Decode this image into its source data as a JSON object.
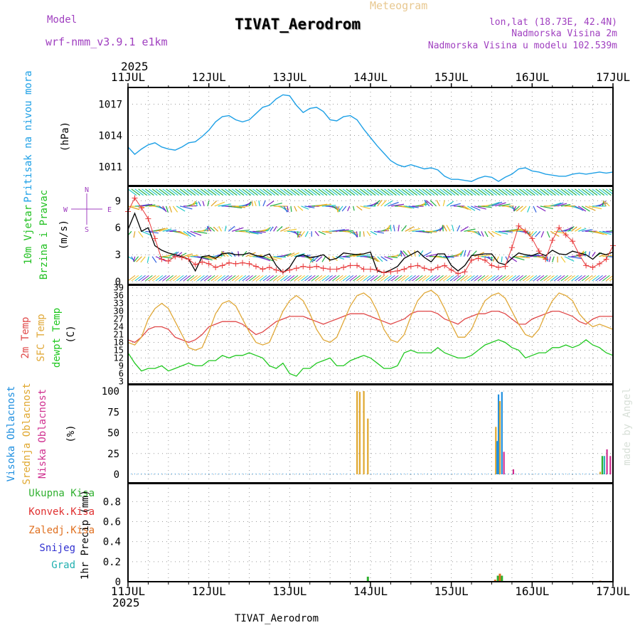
{
  "header": {
    "title": "TIVAT_Aerodrom",
    "meteogram_label": "Meteogram",
    "model_label": "Model",
    "model_name": "wrf-nmm_v3.9.1 e1km",
    "lonlat": "lon,lat (18.73E, 42.4N)",
    "elevation": "Nadmorska Visina 2m",
    "model_elevation": "Nadmorska Visina u modelu 102.539m",
    "year_top": "2025",
    "year_bottom": "2025",
    "footer_title": "TIVAT_Aerodrom",
    "watermark": "made by Angel"
  },
  "colors": {
    "pressure": "#1ea0e6",
    "wind_speed": "#000000",
    "gust": "#e8383a",
    "t2m": "#e04848",
    "sfc": "#e0a838",
    "dewpt": "#20c820",
    "high_cloud": "#2090e0",
    "mid_cloud": "#e0a830",
    "low_cloud": "#d03090",
    "total_rain": "#30b030",
    "conv_rain": "#e03030",
    "freezing_rain": "#e07020",
    "snow": "#3030d0",
    "hail": "#20b0b0",
    "model_text": "#a040c0",
    "meteogram_text": "#e8c890",
    "info_text": "#a040c0",
    "watermark": "#d8e0d8"
  },
  "chart_data": [
    {
      "type": "line",
      "panel": "pressure",
      "ylabel_main": "Pritisak na nivou mora",
      "unit": "(hPa)",
      "y_ticks": [
        "1017",
        "1014",
        "1011"
      ],
      "ylim": [
        1009.2,
        1018.6
      ],
      "x": [
        0,
        2,
        4,
        6,
        8,
        10,
        12,
        14,
        16,
        18,
        20,
        22,
        24,
        26,
        28,
        30,
        32,
        34,
        36,
        38,
        40,
        42,
        44,
        46,
        48,
        50,
        52,
        54,
        56,
        58,
        60,
        62,
        64,
        66,
        68,
        70,
        72,
        74,
        76,
        78,
        80,
        82,
        84,
        86,
        88,
        90,
        92,
        94,
        96,
        98,
        100,
        102,
        104,
        106,
        108,
        110,
        112,
        114,
        116,
        118,
        120,
        122,
        124,
        126,
        128,
        130,
        132,
        134,
        136,
        138,
        140,
        142,
        144
      ],
      "series": [
        {
          "key": "pressure",
          "values": [
            1012.9,
            1012.2,
            1012.7,
            1013.1,
            1013.3,
            1012.9,
            1012.7,
            1012.6,
            1012.9,
            1013.3,
            1013.4,
            1013.9,
            1014.5,
            1015.3,
            1015.8,
            1015.9,
            1015.5,
            1015.3,
            1015.5,
            1016.1,
            1016.7,
            1016.9,
            1017.5,
            1017.9,
            1017.8,
            1016.9,
            1016.2,
            1016.6,
            1016.7,
            1016.3,
            1015.5,
            1015.4,
            1015.8,
            1015.9,
            1015.5,
            1014.6,
            1013.8,
            1013.0,
            1012.3,
            1011.6,
            1011.2,
            1011.0,
            1011.2,
            1011.0,
            1010.8,
            1010.9,
            1010.7,
            1010.1,
            1009.8,
            1009.8,
            1009.7,
            1009.6,
            1009.9,
            1010.1,
            1010.0,
            1009.6,
            1010.0,
            1010.3,
            1010.8,
            1010.9,
            1010.6,
            1010.5,
            1010.3,
            1010.2,
            1010.1,
            1010.1,
            1010.3,
            1010.4,
            1010.3,
            1010.4,
            1010.5,
            1010.4,
            1010.5
          ]
        }
      ]
    },
    {
      "type": "line",
      "panel": "wind",
      "ylabel_main": "10m Vjetar",
      "ylabel_sub": "Brzina i Pravac",
      "unit": "(m/s)",
      "compass": {
        "n": "N",
        "w": "W",
        "e": "E",
        "s": "S"
      },
      "y_ticks": [
        "9",
        "6",
        "3",
        "0"
      ],
      "ylim": [
        -0.3,
        10.6
      ],
      "x": [
        0,
        2,
        4,
        6,
        8,
        10,
        12,
        14,
        16,
        18,
        20,
        22,
        24,
        26,
        28,
        30,
        32,
        34,
        36,
        38,
        40,
        42,
        44,
        46,
        48,
        50,
        52,
        54,
        56,
        58,
        60,
        62,
        64,
        66,
        68,
        70,
        72,
        74,
        76,
        78,
        80,
        82,
        84,
        86,
        88,
        90,
        92,
        94,
        96,
        98,
        100,
        102,
        104,
        106,
        108,
        110,
        112,
        114,
        116,
        118,
        120,
        122,
        124,
        126,
        128,
        130,
        132,
        134,
        136,
        138,
        140,
        142,
        144
      ],
      "series": [
        {
          "key": "wind_speed",
          "values": [
            5.8,
            7.6,
            5.6,
            6.0,
            4.0,
            3.5,
            3.2,
            3.0,
            2.8,
            2.5,
            1.2,
            2.8,
            2.9,
            2.6,
            3.1,
            3.2,
            3.0,
            3.0,
            3.2,
            2.9,
            2.8,
            3.1,
            1.8,
            1.0,
            1.6,
            2.8,
            3.0,
            2.7,
            2.8,
            3.0,
            2.4,
            2.6,
            3.2,
            3.1,
            3.0,
            3.1,
            3.3,
            1.2,
            1.0,
            1.3,
            1.7,
            2.6,
            3.0,
            3.4,
            2.7,
            2.2,
            3.1,
            3.1,
            1.8,
            1.2,
            1.8,
            2.9,
            3.0,
            3.1,
            3.1,
            2.1,
            1.9,
            2.6,
            3.2,
            3.0,
            2.9,
            3.2,
            2.9,
            3.5,
            3.1,
            3.0,
            3.4,
            3.2,
            3.0,
            2.5,
            3.2,
            3.0,
            3.3
          ]
        },
        {
          "key": "gust",
          "values": [
            7.8,
            9.3,
            8.2,
            7.0,
            4.8,
            2.5,
            2.3,
            2.8,
            2.7,
            2.5,
            1.9,
            2.2,
            2.0,
            1.6,
            1.8,
            2.1,
            2.0,
            2.1,
            2.0,
            1.7,
            1.4,
            1.6,
            1.3,
            1.1,
            1.3,
            1.5,
            1.7,
            1.6,
            1.7,
            1.5,
            1.4,
            1.4,
            1.6,
            1.8,
            1.8,
            1.4,
            1.4,
            1.3,
            1.0,
            1.1,
            1.2,
            1.4,
            1.7,
            1.8,
            1.5,
            1.3,
            1.6,
            1.8,
            1.3,
            0.9,
            1.1,
            2.4,
            2.6,
            2.4,
            1.8,
            1.6,
            1.7,
            3.8,
            6.2,
            5.6,
            4.8,
            3.4,
            2.5,
            4.6,
            6.0,
            5.2,
            4.5,
            3.0,
            1.8,
            1.6,
            2.0,
            2.5,
            4.0
          ]
        }
      ],
      "arrow_rows": [
        2.8,
        5.6,
        8.4
      ]
    },
    {
      "type": "line",
      "panel": "temperature",
      "ylabel_t2m": "2m Temp",
      "ylabel_sfc": "SFC Temp",
      "ylabel_dew": "dewpt Temp",
      "unit": "(C)",
      "y_ticks": [
        "39",
        "36",
        "33",
        "30",
        "27",
        "24",
        "21",
        "18",
        "15",
        "12",
        "9",
        "6",
        "3"
      ],
      "ylim": [
        2,
        40
      ],
      "x": [
        0,
        2,
        4,
        6,
        8,
        10,
        12,
        14,
        16,
        18,
        20,
        22,
        24,
        26,
        28,
        30,
        32,
        34,
        36,
        38,
        40,
        42,
        44,
        46,
        48,
        50,
        52,
        54,
        56,
        58,
        60,
        62,
        64,
        66,
        68,
        70,
        72,
        74,
        76,
        78,
        80,
        82,
        84,
        86,
        88,
        90,
        92,
        94,
        96,
        98,
        100,
        102,
        104,
        106,
        108,
        110,
        112,
        114,
        116,
        118,
        120,
        122,
        124,
        126,
        128,
        130,
        132,
        134,
        136,
        138,
        140,
        142,
        144
      ],
      "series": [
        {
          "key": "t2m",
          "values": [
            19,
            18,
            20,
            23,
            24,
            24,
            23,
            20,
            19,
            18,
            19,
            21,
            24,
            25,
            26,
            26,
            26,
            25,
            23,
            21,
            22,
            24,
            26,
            27,
            28,
            28,
            28,
            27,
            26,
            25,
            26,
            27,
            28,
            29,
            29,
            29,
            28,
            27,
            26,
            25,
            26,
            27,
            29,
            30,
            30,
            30,
            29,
            27,
            26,
            25,
            27,
            28,
            29,
            29,
            30,
            30,
            29,
            27,
            25,
            25,
            27,
            28,
            29,
            30,
            30,
            29,
            28,
            26,
            25,
            27,
            28,
            28,
            28
          ]
        },
        {
          "key": "sfc",
          "values": [
            18,
            17,
            20,
            27,
            31,
            33,
            31,
            26,
            21,
            16,
            15,
            16,
            22,
            29,
            33,
            34,
            32,
            27,
            22,
            18,
            17,
            18,
            24,
            30,
            34,
            36,
            34,
            29,
            23,
            19,
            18,
            20,
            26,
            32,
            36,
            37,
            35,
            30,
            23,
            19,
            18,
            21,
            28,
            34,
            37,
            38,
            36,
            31,
            25,
            20,
            20,
            23,
            29,
            34,
            36,
            37,
            35,
            30,
            25,
            21,
            20,
            23,
            29,
            34,
            37,
            36,
            34,
            29,
            26,
            24,
            25,
            24,
            23
          ]
        },
        {
          "key": "dewpt",
          "values": [
            14,
            10,
            7,
            8,
            8,
            9,
            7,
            8,
            9,
            10,
            9,
            9,
            11,
            11,
            13,
            12,
            13,
            13,
            14,
            13,
            12,
            9,
            8,
            10,
            6,
            5,
            8,
            8,
            10,
            11,
            12,
            9,
            9,
            11,
            12,
            13,
            12,
            10,
            8,
            8,
            9,
            14,
            15,
            14,
            14,
            14,
            16,
            14,
            13,
            12,
            12,
            13,
            15,
            17,
            18,
            19,
            18,
            16,
            15,
            12,
            13,
            14,
            14,
            16,
            16,
            17,
            16,
            17,
            19,
            17,
            16,
            14,
            13
          ]
        }
      ]
    },
    {
      "type": "bar",
      "panel": "clouds",
      "ylabel_high": "Visoka Oblacnost",
      "ylabel_mid": "Srednja Oblacnost",
      "ylabel_low": "Niska Oblacnost",
      "unit": "(%)",
      "y_ticks": [
        "100",
        "75",
        "50",
        "25",
        "0"
      ],
      "ylim": [
        0,
        100
      ],
      "bars": [
        {
          "x": 68.0,
          "key": "mid_cloud",
          "value": 100
        },
        {
          "x": 68.8,
          "key": "mid_cloud",
          "value": 99
        },
        {
          "x": 70.0,
          "key": "mid_cloud",
          "value": 100
        },
        {
          "x": 71.2,
          "key": "mid_cloud",
          "value": 67
        },
        {
          "x": 109.2,
          "key": "mid_cloud",
          "value": 57
        },
        {
          "x": 109.6,
          "key": "high_cloud",
          "value": 40
        },
        {
          "x": 110.0,
          "key": "high_cloud",
          "value": 96
        },
        {
          "x": 110.4,
          "key": "mid_cloud",
          "value": 88
        },
        {
          "x": 111.0,
          "key": "high_cloud",
          "value": 99
        },
        {
          "x": 111.6,
          "key": "low_cloud",
          "value": 27
        },
        {
          "x": 114.4,
          "key": "low_cloud",
          "value": 6
        },
        {
          "x": 140.2,
          "key": "mid_cloud",
          "value": 3
        },
        {
          "x": 140.8,
          "key": "total_rain",
          "value": 22
        },
        {
          "x": 141.4,
          "key": "hail",
          "value": 22
        },
        {
          "x": 142.2,
          "key": "low_cloud",
          "value": 30
        },
        {
          "x": 143.2,
          "key": "low_cloud",
          "value": 22
        }
      ]
    },
    {
      "type": "bar",
      "panel": "precip",
      "ylabel_total": "Ukupna Kisa",
      "ylabel_conv": "Konvek.Kisa",
      "ylabel_freezing": "Zaledj.Kisa",
      "ylabel_snow": "Snijeg",
      "ylabel_hail": "Grad",
      "ylabel_main": "1hr Precip",
      "unit": "(mm)",
      "y_ticks": [
        "0.8",
        "0.6",
        "0.4",
        "0.2",
        "0"
      ],
      "ylim": [
        0,
        0.98
      ],
      "bars": [
        {
          "x": 71.2,
          "key": "total_rain",
          "value": 0.05
        },
        {
          "x": 109.0,
          "key": "freezing_rain",
          "value": 0.02
        },
        {
          "x": 109.8,
          "key": "total_rain",
          "value": 0.06
        },
        {
          "x": 110.4,
          "key": "freezing_rain",
          "value": 0.08
        },
        {
          "x": 111.0,
          "key": "total_rain",
          "value": 0.06
        },
        {
          "x": 140.2,
          "key": "freezing_rain",
          "value": 0.01
        }
      ]
    }
  ],
  "x_axis": {
    "labels": [
      "11JUL",
      "12JUL",
      "13JUL",
      "14JUL",
      "15JUL",
      "16JUL",
      "17JUL"
    ],
    "hours_per_label": 24
  }
}
